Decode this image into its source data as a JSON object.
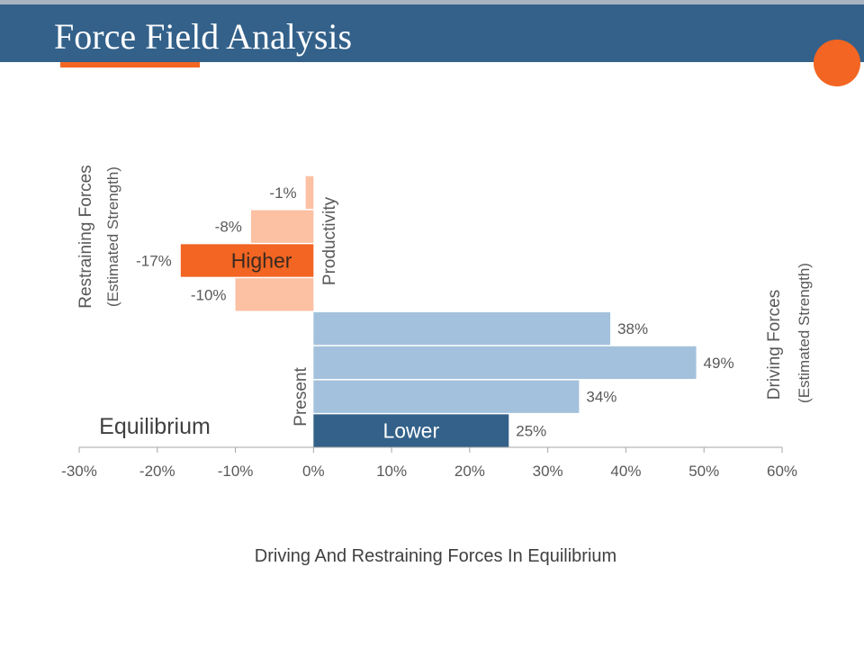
{
  "slide": {
    "title": "Force Field Analysis"
  },
  "colors": {
    "title_bar": "#33618a",
    "accent": "#f26522",
    "restraining": "#fcc0a3",
    "restraining_highlight": "#f26522",
    "driving": "#a3c1dc",
    "driving_highlight": "#33618a"
  },
  "chart_data": {
    "type": "bar",
    "orientation": "horizontal",
    "title": "Driving And Restraining Forces In Equilibrium",
    "xlim": [
      -30,
      60
    ],
    "x_ticks": [
      "-30%",
      "-20%",
      "-10%",
      "0%",
      "10%",
      "20%",
      "30%",
      "40%",
      "50%",
      "60%"
    ],
    "x_tick_values": [
      -30,
      -20,
      -10,
      0,
      10,
      20,
      30,
      40,
      50,
      60
    ],
    "grid": false,
    "left_axis_title": "Restraining Forces",
    "left_axis_subtitle": "(Estimated Strength)",
    "right_axis_title": "Driving Forces",
    "right_axis_subtitle": "(Estimated Strength)",
    "restraining_group_label": "Productivity",
    "driving_group_label": "Present",
    "equilibrium_label": "Equilibrium",
    "bars": [
      {
        "value": -1,
        "label": "-1%",
        "group": "restraining",
        "highlight": false,
        "inner_label": ""
      },
      {
        "value": -8,
        "label": "-8%",
        "group": "restraining",
        "highlight": false,
        "inner_label": ""
      },
      {
        "value": -17,
        "label": "-17%",
        "group": "restraining",
        "highlight": true,
        "inner_label": "Higher"
      },
      {
        "value": -10,
        "label": "-10%",
        "group": "restraining",
        "highlight": false,
        "inner_label": ""
      },
      {
        "value": 38,
        "label": "38%",
        "group": "driving",
        "highlight": false,
        "inner_label": ""
      },
      {
        "value": 49,
        "label": "49%",
        "group": "driving",
        "highlight": false,
        "inner_label": ""
      },
      {
        "value": 34,
        "label": "34%",
        "group": "driving",
        "highlight": false,
        "inner_label": ""
      },
      {
        "value": 25,
        "label": "25%",
        "group": "driving",
        "highlight": true,
        "inner_label": "Lower"
      }
    ]
  }
}
